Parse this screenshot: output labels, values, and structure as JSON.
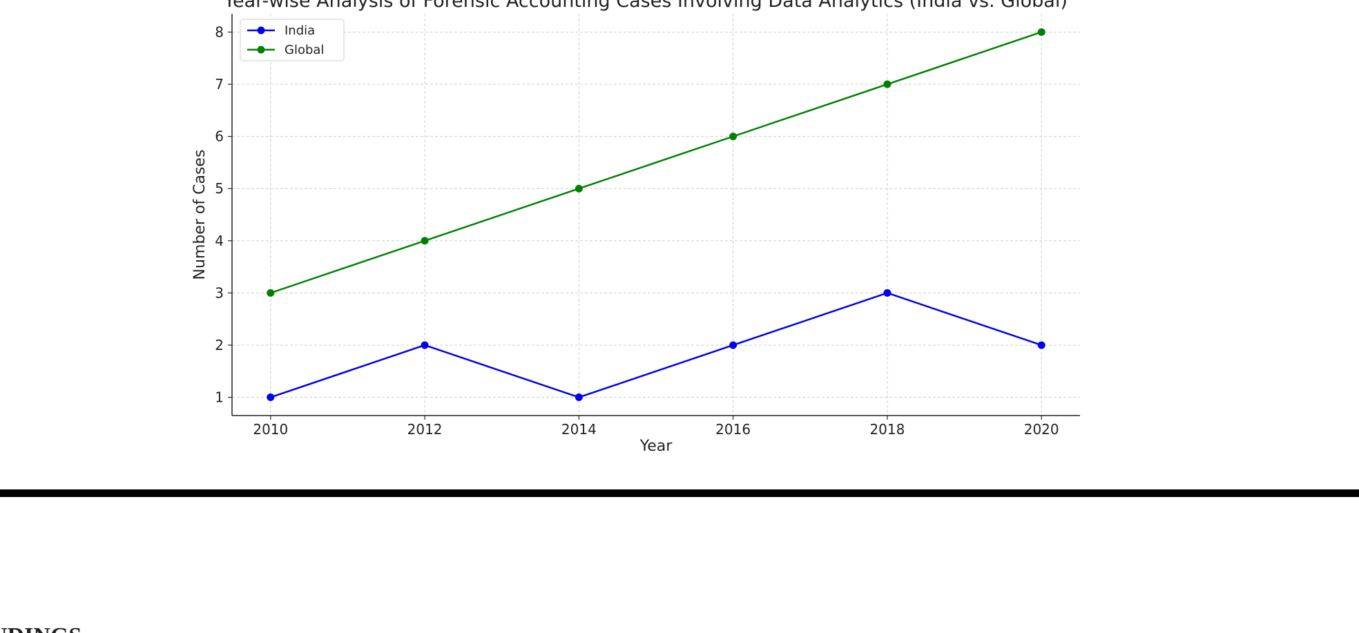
{
  "chart_data": {
    "type": "line",
    "title": "Year-wise Analysis of Forensic Accounting Cases Involving Data Analytics (India vs. Global)",
    "x_label": "Year",
    "y_label": "Number of Cases",
    "x": [
      2010,
      2012,
      2014,
      2016,
      2018,
      2020
    ],
    "series": [
      {
        "name": "India",
        "color": "#0000ee",
        "values": [
          1,
          2,
          1,
          2,
          3,
          2
        ]
      },
      {
        "name": "Global",
        "color": "#008000",
        "values": [
          3,
          4,
          5,
          6,
          7,
          8
        ]
      }
    ],
    "xlim": [
      2009.5,
      2020.5
    ],
    "xticks": [
      2010,
      2012,
      2014,
      2016,
      2018,
      2020
    ],
    "ylim": [
      0.65,
      8.35
    ],
    "yticks": [
      1,
      2,
      3,
      4,
      5,
      6,
      7,
      8
    ],
    "grid": true,
    "legend": "upper-left"
  },
  "footer": {
    "heading": "FINDINGS"
  }
}
